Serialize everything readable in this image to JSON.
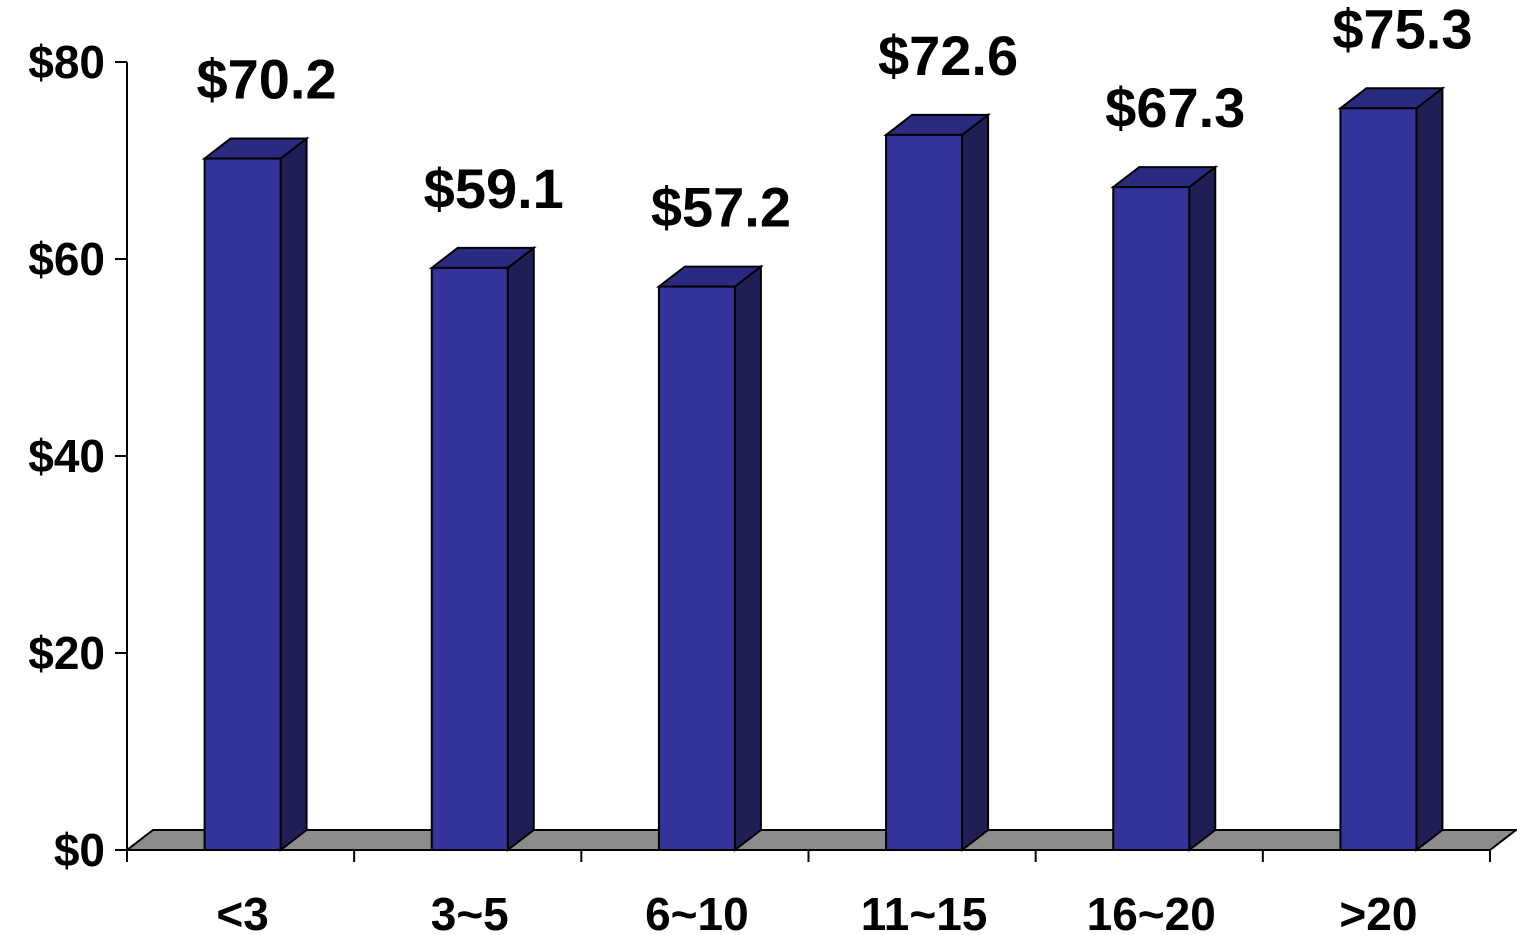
{
  "chart_data": {
    "type": "bar",
    "title": "",
    "xlabel": "",
    "ylabel": "",
    "categories": [
      "<3",
      "3~5",
      "6~10",
      "11~15",
      "16~20",
      ">20"
    ],
    "values": [
      70.2,
      59.1,
      57.2,
      72.6,
      67.3,
      75.3
    ],
    "data_labels": [
      "$70.2",
      "$59.1",
      "$57.2",
      "$72.6",
      "$67.3",
      "$75.3"
    ],
    "ylim": [
      0,
      80
    ],
    "yticks": [
      0,
      20,
      40,
      60,
      80
    ],
    "ytick_labels": [
      "$0",
      "$20",
      "$40",
      "$60",
      "$80"
    ],
    "grid": false,
    "legend": "none",
    "style": "3d-column",
    "colors": {
      "bar_front": "#333399",
      "bar_side": "#1f1f55",
      "bar_top": "#2a2a80",
      "floor": "#8c8c8c",
      "outline": "#000000"
    }
  }
}
